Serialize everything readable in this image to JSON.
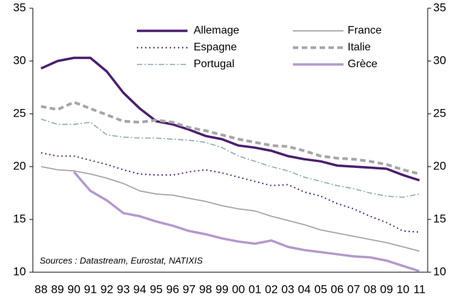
{
  "chart_data": {
    "type": "line",
    "categories": [
      "88",
      "89",
      "90",
      "91",
      "92",
      "93",
      "94",
      "95",
      "96",
      "97",
      "98",
      "99",
      "00",
      "01",
      "02",
      "03",
      "04",
      "05",
      "06",
      "07",
      "08",
      "09",
      "10",
      "11"
    ],
    "series": [
      {
        "name": "Allemage",
        "color": "#4b1f6f",
        "width": 3.5,
        "dash": "none",
        "values": [
          29.3,
          30.0,
          30.3,
          30.3,
          29.0,
          27.0,
          25.5,
          24.3,
          24.0,
          23.5,
          22.9,
          22.6,
          22.0,
          21.8,
          21.5,
          21.0,
          20.7,
          20.5,
          20.1,
          20.0,
          19.9,
          19.8,
          19.2,
          18.7
        ]
      },
      {
        "name": "France",
        "color": "#a6a6a6",
        "width": 1.8,
        "dash": "none",
        "values": [
          20.0,
          19.7,
          19.6,
          19.3,
          18.9,
          18.4,
          17.7,
          17.4,
          17.3,
          17.0,
          16.7,
          16.3,
          16.0,
          15.8,
          15.3,
          14.9,
          14.5,
          14.0,
          13.7,
          13.4,
          13.1,
          12.8,
          12.4,
          12.0
        ]
      },
      {
        "name": "Espagne",
        "color": "#5a2a82",
        "width": 2,
        "dash": "2 4",
        "values": [
          21.3,
          21.0,
          21.0,
          20.6,
          20.2,
          19.7,
          19.3,
          19.2,
          19.2,
          19.5,
          19.7,
          19.4,
          19.0,
          18.6,
          18.2,
          18.3,
          17.6,
          17.2,
          16.5,
          16.0,
          15.3,
          14.7,
          13.9,
          13.8
        ]
      },
      {
        "name": "Italie",
        "color": "#a6a6a6",
        "width": 4,
        "dash": "8 5",
        "values": [
          25.7,
          25.4,
          26.1,
          25.5,
          24.9,
          24.3,
          24.2,
          24.4,
          24.2,
          23.7,
          23.4,
          23.0,
          22.6,
          22.3,
          22.0,
          21.9,
          21.5,
          21.0,
          20.8,
          20.7,
          20.5,
          20.2,
          19.7,
          19.3
        ]
      },
      {
        "name": "Portugal",
        "color": "#8ea9b5",
        "width": 1.6,
        "dash": "8 3 2 3",
        "values": [
          24.5,
          24.0,
          24.0,
          24.2,
          23.0,
          22.8,
          22.7,
          22.7,
          22.6,
          22.5,
          22.3,
          21.8,
          21.0,
          20.5,
          20.0,
          19.6,
          19.0,
          18.6,
          18.2,
          17.9,
          17.5,
          17.2,
          17.1,
          17.4
        ]
      },
      {
        "name": "Grèce",
        "color": "#b49acb",
        "width": 3.5,
        "dash": "none",
        "values": [
          null,
          null,
          19.5,
          17.7,
          16.8,
          15.6,
          15.3,
          14.8,
          14.4,
          13.9,
          13.6,
          13.2,
          12.9,
          12.7,
          13.0,
          12.4,
          12.1,
          11.9,
          11.7,
          11.5,
          11.4,
          11.1,
          10.6,
          10.1
        ]
      }
    ],
    "ylim": [
      10,
      35
    ],
    "yticks": [
      10,
      15,
      20,
      25,
      30,
      35
    ],
    "y2lim": [
      10,
      35
    ],
    "y2ticks": [
      10,
      15,
      20,
      25,
      30,
      35
    ],
    "annotation": "Sources : Datastream, Eurostat, NATIXIS"
  }
}
